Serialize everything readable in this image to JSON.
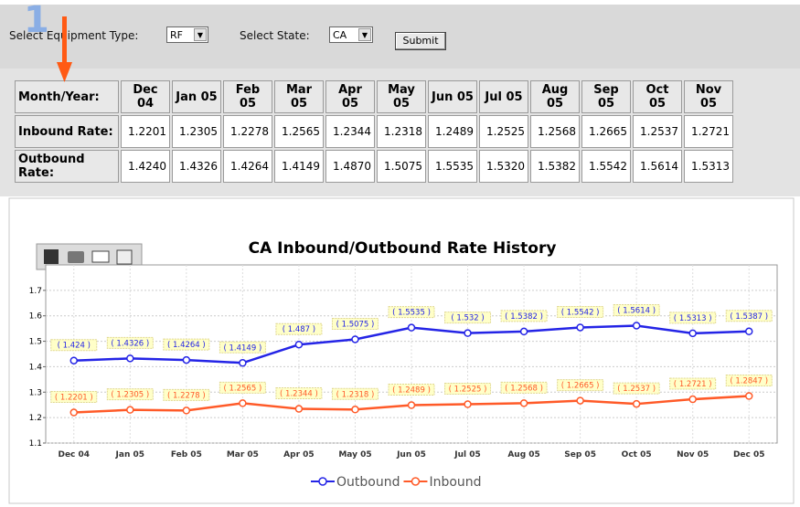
{
  "controls": {
    "step": "1",
    "equipment_label": "Select Equipment Type:",
    "equipment_value": "RF",
    "state_label": "Select State:",
    "state_value": "CA",
    "submit": "Submit"
  },
  "table": {
    "header": [
      "Month/Year:",
      "Dec 04",
      "Jan 05",
      "Feb 05",
      "Mar 05",
      "Apr 05",
      "May 05",
      "Jun 05",
      "Jul 05",
      "Aug 05",
      "Sep 05",
      "Oct 05",
      "Nov 05"
    ],
    "rows": [
      [
        "Inbound Rate:",
        "1.2201",
        "1.2305",
        "1.2278",
        "1.2565",
        "1.2344",
        "1.2318",
        "1.2489",
        "1.2525",
        "1.2568",
        "1.2665",
        "1.2537",
        "1.2721"
      ],
      [
        "Outbound Rate:",
        "1.4240",
        "1.4326",
        "1.4264",
        "1.4149",
        "1.4870",
        "1.5075",
        "1.5535",
        "1.5320",
        "1.5382",
        "1.5542",
        "1.5614",
        "1.5313"
      ]
    ]
  },
  "chart_data": {
    "type": "line",
    "title": "CA Inbound/Outbound Rate History",
    "categories": [
      "Dec 04",
      "Jan 05",
      "Feb 05",
      "Mar 05",
      "Apr 05",
      "May 05",
      "Jun 05",
      "Jul 05",
      "Aug 05",
      "Sep 05",
      "Oct 05",
      "Nov 05",
      "Dec 05"
    ],
    "series": [
      {
        "name": "Outbound",
        "color": "#2424e6",
        "values": [
          1.424,
          1.4326,
          1.4264,
          1.4149,
          1.487,
          1.5075,
          1.5535,
          1.532,
          1.5382,
          1.5542,
          1.5614,
          1.5313,
          1.5387
        ],
        "value_labels": [
          "( 1.424 )",
          "( 1.4326 )",
          "( 1.4264 )",
          "( 1.4149 )",
          "( 1.487 )",
          "( 1.5075 )",
          "( 1.5535 )",
          "( 1.532 )",
          "( 1.5382 )",
          "( 1.5542 )",
          "( 1.5614 )",
          "( 1.5313 )",
          "( 1.5387 )"
        ]
      },
      {
        "name": "Inbound",
        "color": "#ff5a28",
        "values": [
          1.2201,
          1.2305,
          1.2278,
          1.2565,
          1.2344,
          1.2318,
          1.2489,
          1.2525,
          1.2568,
          1.2665,
          1.2537,
          1.2721,
          1.2847
        ],
        "value_labels": [
          "( 1.2201 )",
          "( 1.2305 )",
          "( 1.2278 )",
          "( 1.2565 )",
          "( 1.2344 )",
          "( 1.2318 )",
          "( 1.2489 )",
          "( 1.2525 )",
          "( 1.2568 )",
          "( 1.2665 )",
          "( 1.2537 )",
          "( 1.2721 )",
          "( 1.2847 )"
        ]
      }
    ],
    "ylim": [
      1.1,
      1.8
    ],
    "yticks": [
      1.1,
      1.2,
      1.3,
      1.4,
      1.5,
      1.6,
      1.7
    ],
    "grid": true,
    "legend": "bottom"
  }
}
